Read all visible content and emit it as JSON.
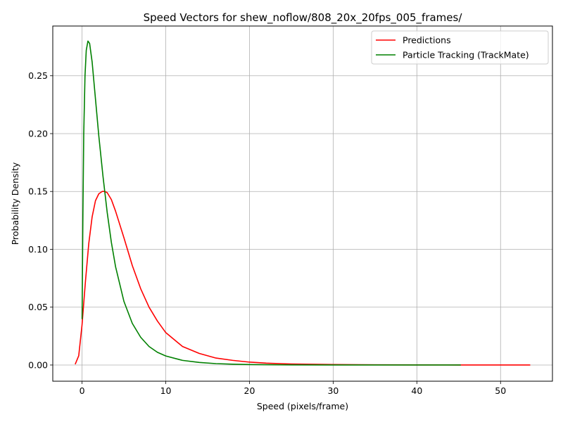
{
  "chart_data": {
    "type": "line",
    "title": "Speed Vectors for shew_noflow/808_20x_20fps_005_frames/",
    "xlabel": "Speed (pixels/frame)",
    "ylabel": "Probability Density",
    "xlim": [
      -3.5,
      56.2
    ],
    "ylim": [
      -0.014,
      0.293
    ],
    "xticks": [
      0,
      10,
      20,
      30,
      40,
      50
    ],
    "xtick_labels": [
      "0",
      "10",
      "20",
      "30",
      "40",
      "50"
    ],
    "yticks": [
      0.0,
      0.05,
      0.1,
      0.15,
      0.2,
      0.25
    ],
    "ytick_labels": [
      "0.00",
      "0.05",
      "0.10",
      "0.15",
      "0.20",
      "0.25"
    ],
    "grid": true,
    "legend_position": "top-right",
    "series": [
      {
        "name": "Predictions",
        "color": "#ff0000",
        "x": [
          -0.8,
          -0.4,
          0.0,
          0.4,
          0.8,
          1.2,
          1.6,
          2.0,
          2.4,
          2.7,
          3.0,
          3.5,
          4.0,
          5.0,
          6.0,
          7.0,
          8.0,
          9.0,
          10.0,
          12.0,
          14.0,
          16.0,
          18.0,
          20.0,
          22.0,
          25.0,
          30.0,
          35.0,
          40.0,
          45.0,
          50.0,
          53.5
        ],
        "y": [
          0.001,
          0.008,
          0.035,
          0.072,
          0.105,
          0.128,
          0.142,
          0.148,
          0.15,
          0.15,
          0.149,
          0.143,
          0.133,
          0.11,
          0.086,
          0.066,
          0.05,
          0.038,
          0.028,
          0.016,
          0.01,
          0.006,
          0.004,
          0.0025,
          0.0016,
          0.0009,
          0.0004,
          0.0002,
          0.0001,
          5e-05,
          2e-05,
          0.0
        ]
      },
      {
        "name": "Particle Tracking (TrackMate)",
        "color": "#008000",
        "x": [
          0.0,
          0.1,
          0.2,
          0.35,
          0.5,
          0.7,
          0.9,
          1.2,
          1.5,
          2.0,
          2.5,
          3.0,
          3.5,
          4.0,
          5.0,
          6.0,
          7.0,
          8.0,
          9.0,
          10.0,
          12.0,
          14.0,
          16.0,
          18.0,
          20.0,
          25.0,
          30.0,
          35.0,
          40.0,
          45.2
        ],
        "y": [
          0.04,
          0.13,
          0.2,
          0.25,
          0.272,
          0.28,
          0.278,
          0.262,
          0.238,
          0.198,
          0.163,
          0.132,
          0.106,
          0.085,
          0.055,
          0.036,
          0.024,
          0.016,
          0.011,
          0.0078,
          0.004,
          0.0022,
          0.0012,
          0.0007,
          0.0004,
          0.0001,
          4e-05,
          2e-05,
          1e-05,
          0.0
        ]
      }
    ]
  }
}
